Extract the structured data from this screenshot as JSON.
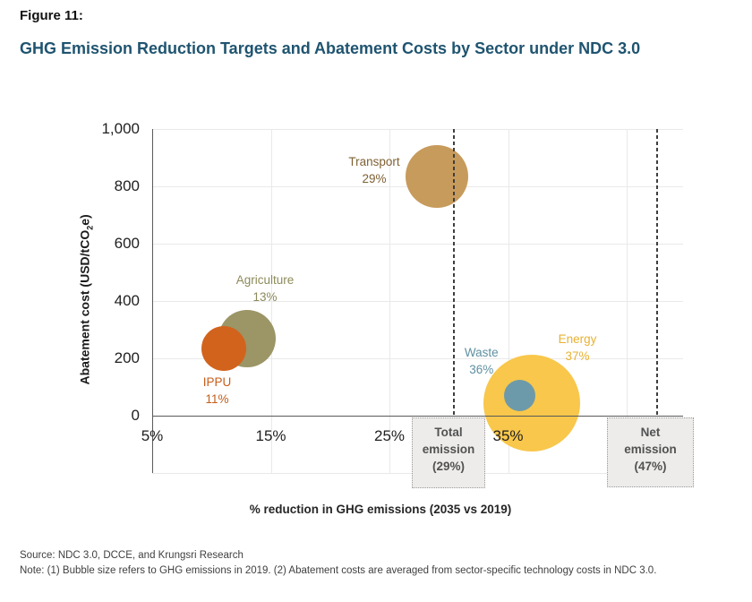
{
  "figure": {
    "label": "Figure 11:",
    "title": "GHG Emission Reduction Targets and Abatement Costs by Sector under NDC 3.0"
  },
  "colors": {
    "title": "#1F5470",
    "axis_line": "#595959",
    "gridline": "#E9E9E9",
    "tick_text": "#1F1F1F",
    "ref_line": "#3F3F3F",
    "box_bg": "#EDECEA",
    "box_border": "#9A9A9A",
    "box_text": "#525252"
  },
  "chart_data": {
    "type": "scatter",
    "subtype": "bubble",
    "title": "",
    "xlabel": "% reduction in GHG emissions (2035 vs 2019)",
    "ylabel": "Abatement cost (USD/tCO2e)",
    "ylabel_parts": {
      "prefix": "Abatement cost (USD/tCO",
      "sub": "2",
      "suffix": "e)"
    },
    "xlim": [
      5,
      50
    ],
    "ylim": [
      -200,
      1000
    ],
    "grid": true,
    "legend": "none",
    "x_ticks": [
      {
        "label": "5%",
        "value": 5
      },
      {
        "label": "15%",
        "value": 15
      },
      {
        "label": "25%",
        "value": 25
      },
      {
        "label": "35%",
        "value": 35
      }
    ],
    "x_gridline_values": [
      15,
      25,
      35,
      45
    ],
    "y_ticks": [
      {
        "label": "0",
        "value": 0
      },
      {
        "label": "200",
        "value": 200
      },
      {
        "label": "400",
        "value": 400
      },
      {
        "label": "600",
        "value": 600
      },
      {
        "label": "800",
        "value": 800
      },
      {
        "label": "1,000",
        "value": 1000
      }
    ],
    "series": [
      {
        "sector": "Agriculture",
        "reduction_pct": 13,
        "abatement_cost": 270,
        "label_lines": [
          "Agriculture",
          "13%"
        ],
        "bubble_color": "#9C9566",
        "label_color": "#8C8A5A",
        "radius_px": 32,
        "label_offset": [
          20,
          -56
        ]
      },
      {
        "sector": "IPPU",
        "reduction_pct": 11,
        "abatement_cost": 235,
        "label_lines": [
          "IPPU",
          "11%"
        ],
        "bubble_color": "#D2631C",
        "label_color": "#C55E1B",
        "radius_px": 25,
        "label_offset": [
          -7,
          47
        ]
      },
      {
        "sector": "Energy",
        "reduction_pct": 37,
        "abatement_cost": 45,
        "label_lines": [
          "Energy",
          "37%"
        ],
        "bubble_color": "#F8C74B",
        "label_color": "#E8B233",
        "radius_px": 54,
        "label_offset": [
          51,
          -62
        ]
      },
      {
        "sector": "Waste",
        "reduction_pct": 36,
        "abatement_cost": 70,
        "label_lines": [
          "Waste",
          "36%"
        ],
        "bubble_color": "#6D9AAA",
        "label_color": "#5E90A1",
        "radius_px": 17.5,
        "label_offset": [
          -43,
          -39
        ]
      },
      {
        "sector": "Transport",
        "reduction_pct": 29,
        "abatement_cost": 835,
        "label_lines": [
          "Transport",
          "29%"
        ],
        "bubble_color": "#C79B5C",
        "label_color": "#7F6134",
        "radius_px": 35,
        "label_offset": [
          -70,
          -7
        ]
      }
    ],
    "reference_lines": [
      {
        "value_pct": 29,
        "box_lines": [
          "Total",
          "emission",
          "(29%)"
        ]
      },
      {
        "value_pct": 47,
        "box_lines": [
          "Net",
          "emission",
          "(47%)"
        ]
      }
    ]
  },
  "footer": {
    "source": "Source: NDC 3.0, DCCE, and Krungsri Research",
    "note": "Note: (1) Bubble size refers to GHG emissions in 2019. (2) Abatement costs are averaged from sector-specific technology costs in NDC 3.0."
  }
}
